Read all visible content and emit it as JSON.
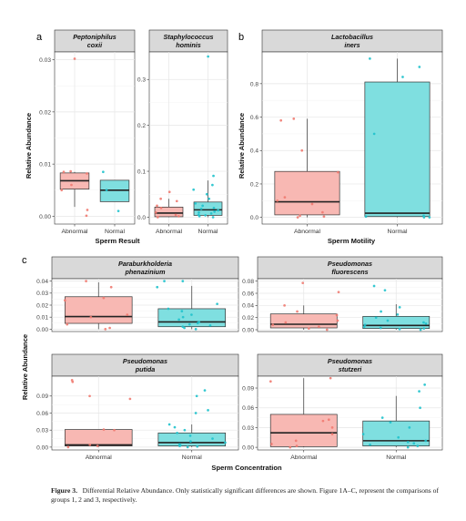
{
  "panel_letters": {
    "a": "a",
    "b": "b",
    "c": "c"
  },
  "caption": {
    "label": "Figure 3.",
    "text": "Differential Relative Abundance. Only statistically significant differences are shown. Figure 1A–C, represent the comparisons of groups 1, 2 and 3, respectively."
  },
  "colors": {
    "abnormal_fill": "#f8b8b3",
    "abnormal_point": "#f07a70",
    "normal_fill": "#7fdfe0",
    "normal_point": "#1fc2cc",
    "strip": "#d9d9d9"
  },
  "chart_data": [
    {
      "type": "box",
      "panel": "a",
      "title": "Peptoniphilus coxii",
      "title_lines": [
        "Peptoniphilus",
        "coxii"
      ],
      "categories": [
        "Abnormal",
        "Normal"
      ],
      "yticks": [
        "0.00",
        "0.01",
        "0.02",
        "0.03"
      ],
      "ytick_values": [
        0,
        0.01,
        0.02,
        0.03
      ],
      "ylim": [
        -0.0015,
        0.0315
      ],
      "boxes": [
        {
          "q1": 0.0052,
          "median": 0.0068,
          "q3": 0.0083,
          "low": 0.0018,
          "high": 0.0085
        },
        {
          "q1": 0.0028,
          "median": 0.005,
          "q3": 0.0069,
          "low": 0.0028,
          "high": 0.0069
        }
      ],
      "points": [
        [
          0.0001,
          0.0012,
          0.005,
          0.006,
          0.0082,
          0.0085,
          0.0086,
          0.0302
        ],
        [
          0.001,
          0.005,
          0.0085
        ]
      ]
    },
    {
      "type": "box",
      "panel": "a",
      "title": "Staphylococcus hominis",
      "title_lines": [
        "Staphylococcus",
        "hominis"
      ],
      "categories": [
        "Abnormal",
        "Normal"
      ],
      "yticks": [
        "0.0",
        "0.1",
        "0.2",
        "0.3"
      ],
      "ytick_values": [
        0,
        0.1,
        0.2,
        0.3
      ],
      "ylim": [
        -0.015,
        0.36
      ],
      "boxes": [
        {
          "q1": 0.001,
          "median": 0.009,
          "q3": 0.022,
          "low": 0.0,
          "high": 0.04
        },
        {
          "q1": 0.004,
          "median": 0.016,
          "q3": 0.033,
          "low": 0.0,
          "high": 0.08
        }
      ],
      "points": [
        [
          0.0,
          0.002,
          0.005,
          0.01,
          0.02,
          0.025,
          0.035,
          0.04,
          0.055
        ],
        [
          0.0,
          0.002,
          0.004,
          0.005,
          0.008,
          0.01,
          0.012,
          0.015,
          0.018,
          0.02,
          0.025,
          0.03,
          0.04,
          0.05,
          0.06,
          0.07,
          0.09,
          0.35
        ]
      ]
    },
    {
      "type": "box",
      "panel": "b",
      "title": "Lactobacillus iners",
      "title_lines": [
        "Lactobacillus",
        "iners"
      ],
      "categories": [
        "Abnormal",
        "Normal"
      ],
      "yticks": [
        "0.0",
        "0.2",
        "0.4",
        "0.6",
        "0.8"
      ],
      "ytick_values": [
        0,
        0.2,
        0.4,
        0.6,
        0.8
      ],
      "ylim": [
        -0.04,
        0.99
      ],
      "boxes": [
        {
          "q1": 0.015,
          "median": 0.093,
          "q3": 0.275,
          "low": 0.0,
          "high": 0.59
        },
        {
          "q1": 0.005,
          "median": 0.025,
          "q3": 0.81,
          "low": 0.0,
          "high": 0.95
        }
      ],
      "points": [
        [
          0.0,
          0.005,
          0.01,
          0.03,
          0.08,
          0.1,
          0.12,
          0.27,
          0.4,
          0.58,
          0.59
        ],
        [
          0.0,
          0.0,
          0.005,
          0.01,
          0.5,
          0.84,
          0.9,
          0.95
        ]
      ]
    },
    {
      "type": "box",
      "panel": "c",
      "title": "Paraburkholderia phenazinium",
      "title_lines": [
        "Paraburkholderia",
        "phenazinium"
      ],
      "categories": [
        "Abnormal",
        "Normal"
      ],
      "yticks": [
        "0.00",
        "0.01",
        "0.02",
        "0.03",
        "0.04"
      ],
      "ytick_values": [
        0,
        0.01,
        0.02,
        0.03,
        0.04
      ],
      "ylim": [
        -0.002,
        0.042
      ],
      "boxes": [
        {
          "q1": 0.0048,
          "median": 0.0105,
          "q3": 0.027,
          "low": 0.0,
          "high": 0.039
        },
        {
          "q1": 0.002,
          "median": 0.006,
          "q3": 0.017,
          "low": 0.0,
          "high": 0.036
        }
      ],
      "points": [
        [
          0.0,
          0.001,
          0.004,
          0.01,
          0.012,
          0.024,
          0.026,
          0.035,
          0.04
        ],
        [
          0.0,
          0.001,
          0.002,
          0.003,
          0.004,
          0.005,
          0.006,
          0.008,
          0.01,
          0.012,
          0.015,
          0.017,
          0.021,
          0.035,
          0.04,
          0.04
        ]
      ]
    },
    {
      "type": "box",
      "panel": "c",
      "title": "Pseudomonas fluorescens",
      "title_lines": [
        "Pseudomonas",
        "fluorescens"
      ],
      "categories": [
        "Abnormal",
        "Normal"
      ],
      "yticks": [
        "0.00",
        "0.02",
        "0.04",
        "0.06",
        "0.08"
      ],
      "ytick_values": [
        0,
        0.02,
        0.04,
        0.06,
        0.08
      ],
      "ylim": [
        -0.003,
        0.084
      ],
      "boxes": [
        {
          "q1": 0.003,
          "median": 0.009,
          "q3": 0.026,
          "low": 0.0,
          "high": 0.04
        },
        {
          "q1": 0.002,
          "median": 0.007,
          "q3": 0.022,
          "low": 0.0,
          "high": 0.042
        }
      ],
      "points": [
        [
          0.0,
          0.002,
          0.005,
          0.008,
          0.012,
          0.015,
          0.024,
          0.03,
          0.04,
          0.062,
          0.077
        ],
        [
          0.0,
          0.001,
          0.002,
          0.003,
          0.005,
          0.008,
          0.01,
          0.012,
          0.015,
          0.02,
          0.025,
          0.03,
          0.037,
          0.065,
          0.072
        ]
      ]
    },
    {
      "type": "box",
      "panel": "c",
      "title": "Pseudomonas putida",
      "title_lines": [
        "Pseudomonas",
        "putida"
      ],
      "categories": [
        "Abnormal",
        "Normal"
      ],
      "yticks": [
        "0.00",
        "0.03",
        "0.06",
        "0.09"
      ],
      "ytick_values": [
        0,
        0.03,
        0.06,
        0.09
      ],
      "ylim": [
        -0.005,
        0.125
      ],
      "boxes": [
        {
          "q1": 0.002,
          "median": 0.004,
          "q3": 0.031,
          "low": 0.0,
          "high": 0.031
        },
        {
          "q1": 0.002,
          "median": 0.008,
          "q3": 0.025,
          "low": 0.0,
          "high": 0.04
        }
      ],
      "points": [
        [
          0.0,
          0.002,
          0.004,
          0.03,
          0.031,
          0.085,
          0.09,
          0.115,
          0.118
        ],
        [
          0.0,
          0.001,
          0.002,
          0.003,
          0.005,
          0.008,
          0.01,
          0.015,
          0.02,
          0.025,
          0.03,
          0.035,
          0.04,
          0.06,
          0.065,
          0.09,
          0.1
        ]
      ]
    },
    {
      "type": "box",
      "panel": "c",
      "title": "Pseudomonas stutzeri",
      "title_lines": [
        "Pseudomonas",
        "stutzeri"
      ],
      "categories": [
        "Abnormal",
        "Normal"
      ],
      "yticks": [
        "0.00",
        "0.03",
        "0.06",
        "0.09"
      ],
      "ytick_values": [
        0,
        0.03,
        0.06,
        0.09
      ],
      "ylim": [
        -0.004,
        0.108
      ],
      "boxes": [
        {
          "q1": 0.001,
          "median": 0.022,
          "q3": 0.05,
          "low": 0.0,
          "high": 0.105
        },
        {
          "q1": 0.002,
          "median": 0.01,
          "q3": 0.04,
          "low": 0.0,
          "high": 0.078
        }
      ],
      "points": [
        [
          0.0,
          0.002,
          0.005,
          0.01,
          0.02,
          0.03,
          0.04,
          0.042,
          0.1,
          0.105
        ],
        [
          0.0,
          0.002,
          0.004,
          0.006,
          0.008,
          0.01,
          0.015,
          0.02,
          0.03,
          0.038,
          0.045,
          0.06,
          0.085,
          0.095
        ]
      ]
    }
  ],
  "axis_labels": {
    "a_y": "Relative Abundance",
    "a_x": "Sperm Result",
    "b_y": "Relative Abundance",
    "b_x": "Sperm Motility",
    "c_y": "Relative Abundance",
    "c_x": "Sperm Concentration"
  }
}
